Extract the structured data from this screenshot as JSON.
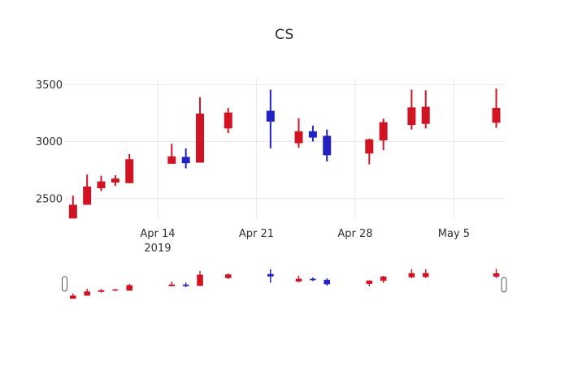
{
  "title": "CS",
  "chart_data": {
    "type": "candlestick",
    "title": "CS",
    "xlabel": "",
    "ylabel": "",
    "y_ticks": [
      2500,
      3000,
      3500
    ],
    "ylim": [
      2317,
      3548
    ],
    "grid": true,
    "legend": "none",
    "x_ticks": [
      {
        "label": "Apr 14",
        "sublabel": "2019",
        "day": 6
      },
      {
        "label": "Apr 21",
        "sublabel": "",
        "day": 13
      },
      {
        "label": "Apr 28",
        "sublabel": "",
        "day": 20
      },
      {
        "label": "May 5",
        "sublabel": "",
        "day": 27
      }
    ],
    "colors": {
      "increasing": "#d01424",
      "decreasing": "#2222c2",
      "grid": "#e8e8e8",
      "tick_text": "#2f2f2f",
      "title_text": "#2a2a2a",
      "handle_border": "#555555",
      "handle_fill": "#ffffff",
      "background": "#ffffff"
    },
    "rangeslider": {
      "enabled": true,
      "handle_count": 2
    },
    "candles": [
      {
        "date": "Apr 8",
        "day": 0,
        "open": 2325,
        "high": 2525,
        "low": 2325,
        "close": 2445
      },
      {
        "date": "Apr 9",
        "day": 1,
        "open": 2445,
        "high": 2710,
        "low": 2445,
        "close": 2605
      },
      {
        "date": "Apr 10",
        "day": 2,
        "open": 2590,
        "high": 2700,
        "low": 2565,
        "close": 2650
      },
      {
        "date": "Apr 11",
        "day": 3,
        "open": 2640,
        "high": 2705,
        "low": 2610,
        "close": 2675
      },
      {
        "date": "Apr 12",
        "day": 4,
        "open": 2635,
        "high": 2890,
        "low": 2635,
        "close": 2845
      },
      {
        "date": "Apr 15",
        "day": 7,
        "open": 2805,
        "high": 2980,
        "low": 2805,
        "close": 2870
      },
      {
        "date": "Apr 16",
        "day": 8,
        "open": 2865,
        "high": 2940,
        "low": 2765,
        "close": 2810
      },
      {
        "date": "Apr 17",
        "day": 9,
        "open": 2815,
        "high": 3390,
        "low": 2815,
        "close": 3245
      },
      {
        "date": "Apr 19",
        "day": 11,
        "open": 3115,
        "high": 3295,
        "low": 3075,
        "close": 3255
      },
      {
        "date": "Apr 22",
        "day": 14,
        "open": 3270,
        "high": 3455,
        "low": 2940,
        "close": 3175
      },
      {
        "date": "Apr 24",
        "day": 16,
        "open": 2985,
        "high": 3205,
        "low": 2945,
        "close": 3090
      },
      {
        "date": "Apr 25",
        "day": 17,
        "open": 3090,
        "high": 3140,
        "low": 3000,
        "close": 3035
      },
      {
        "date": "Apr 26",
        "day": 18,
        "open": 3050,
        "high": 3105,
        "low": 2825,
        "close": 2880
      },
      {
        "date": "Apr 29",
        "day": 21,
        "open": 2895,
        "high": 3025,
        "low": 2800,
        "close": 3020
      },
      {
        "date": "Apr 30",
        "day": 22,
        "open": 3010,
        "high": 3200,
        "low": 2925,
        "close": 3170
      },
      {
        "date": "May 2",
        "day": 24,
        "open": 3145,
        "high": 3455,
        "low": 3105,
        "close": 3300
      },
      {
        "date": "May 3",
        "day": 25,
        "open": 3155,
        "high": 3450,
        "low": 3115,
        "close": 3305
      },
      {
        "date": "May 8",
        "day": 30,
        "open": 3165,
        "high": 3465,
        "low": 3120,
        "close": 3295
      }
    ]
  }
}
